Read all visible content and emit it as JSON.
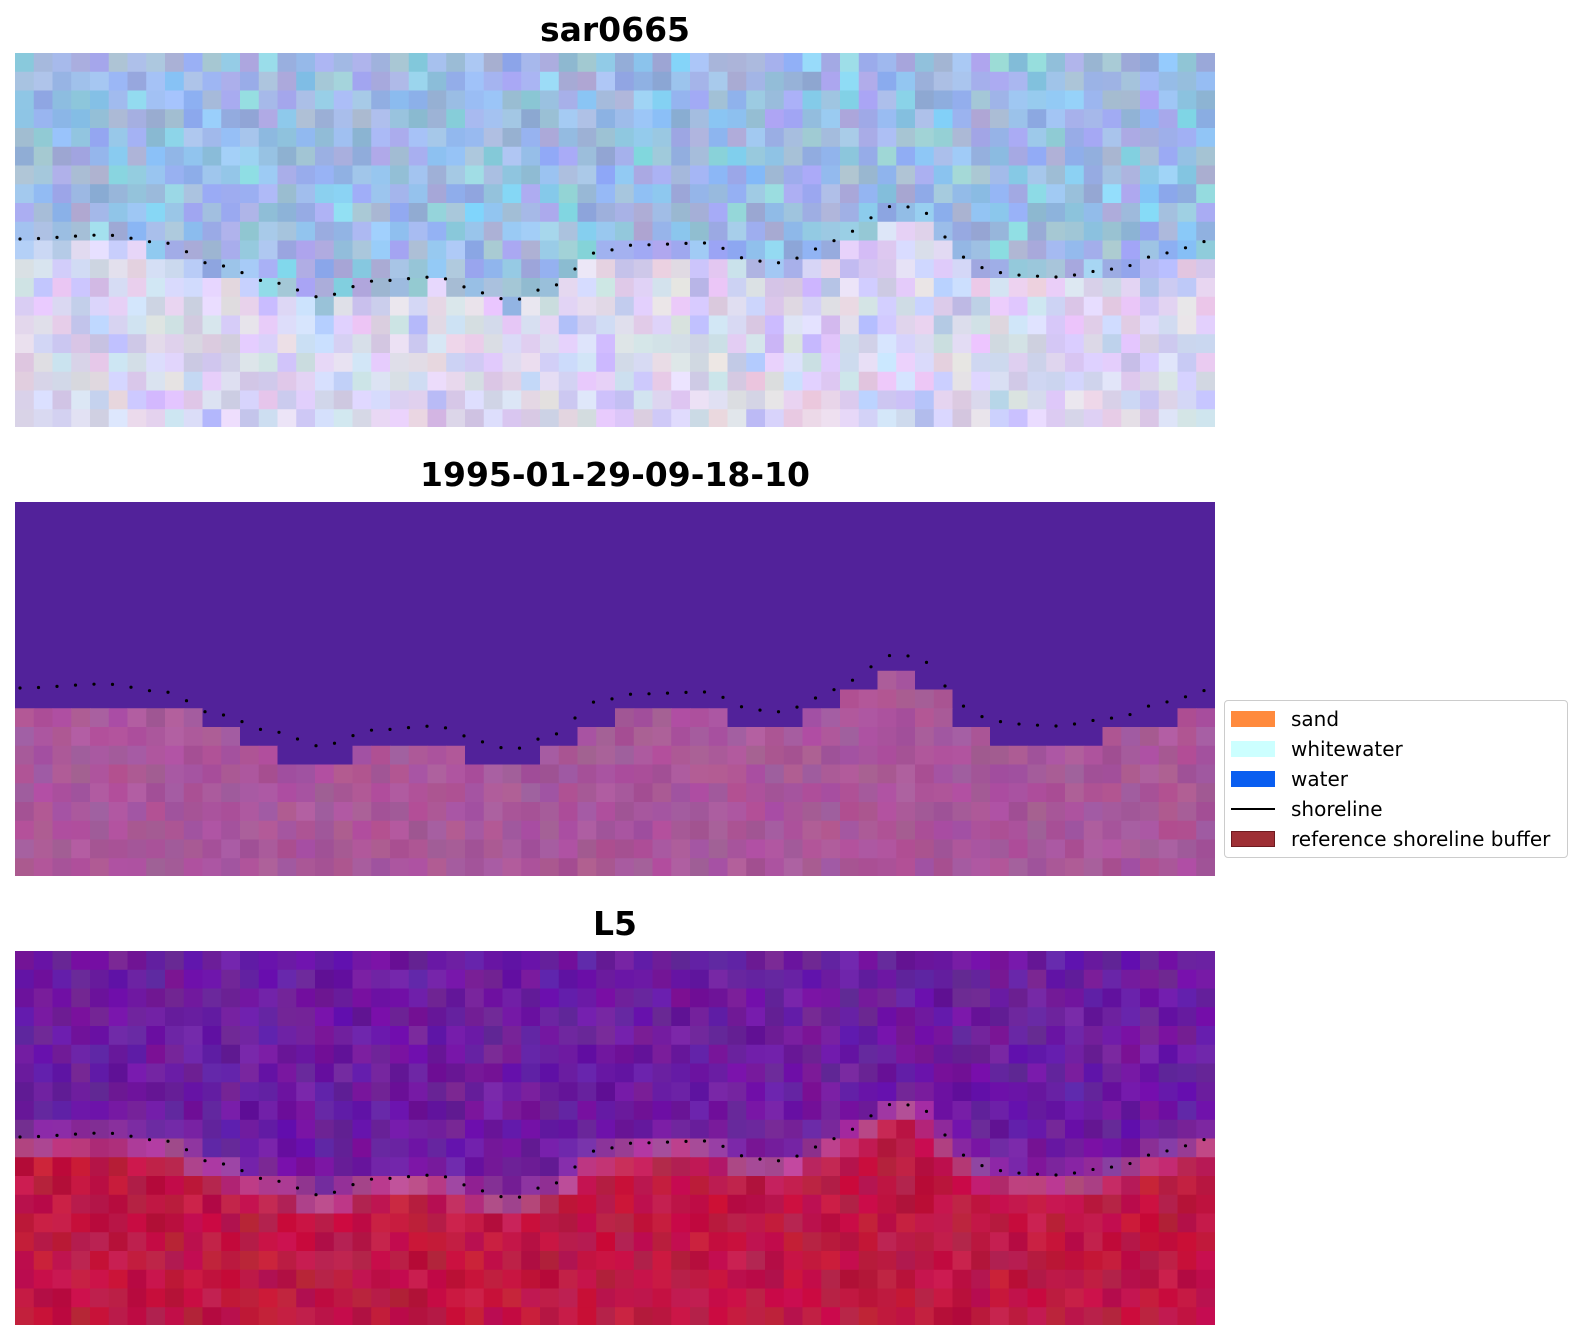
{
  "panels": [
    {
      "title": "sar0665"
    },
    {
      "title": "1995-01-29-09-18-10"
    },
    {
      "title": "L5"
    }
  ],
  "legend": {
    "items": [
      {
        "label": "sand",
        "color": "#ff8a3d"
      },
      {
        "label": "whitewater",
        "color": "#ccffff"
      },
      {
        "label": "water",
        "color": "#0a5ef0"
      },
      {
        "label": "shoreline",
        "color": "#000000"
      },
      {
        "label": "reference shoreline buffer",
        "color": "#9e2f35"
      }
    ]
  },
  "colors": {
    "ocean_rgb": "#9db8e4",
    "land_rgb": "#dcd6ef",
    "classified_water": "#52229a",
    "classified_land": "#a9579a",
    "index_water": "#6d1ca0",
    "index_land": "#be1744"
  }
}
